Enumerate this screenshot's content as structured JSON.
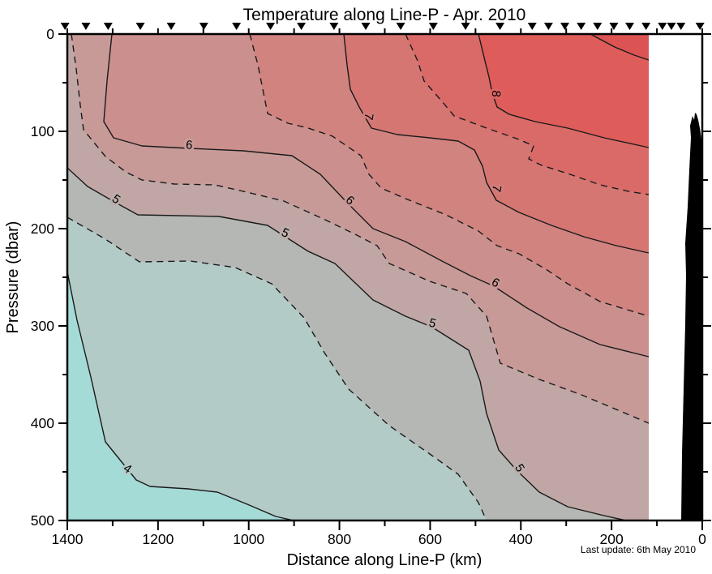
{
  "chart_data": {
    "type": "filled_contour",
    "title": "Temperature along Line-P - Apr. 2010",
    "annotation": "Last update: 6th May 2010",
    "x_axis": {
      "label": "Distance along Line-P (km)",
      "min": 0,
      "max": 1400,
      "reversed": true,
      "ticks_major": [
        1400,
        1200,
        1000,
        800,
        600,
        400,
        200,
        0
      ],
      "ticks_minor": [
        1300,
        1100,
        900,
        700,
        500,
        300,
        100
      ],
      "top_tick_step_km": 100
    },
    "y_axis": {
      "label": "Pressure (dbar)",
      "min": 0,
      "max": 500,
      "inverted": true,
      "ticks_major": [
        0,
        100,
        200,
        300,
        400,
        500
      ],
      "ticks_minor": [
        50,
        150,
        250,
        350,
        450
      ],
      "right_tick_step_dbar": 50
    },
    "contour_levels_solid": [
      4,
      5,
      6,
      7,
      8
    ],
    "contour_levels_dashed": [
      4.5,
      5.5,
      6.5,
      7.5
    ],
    "unlabeled_corner_contour": "solid contour segment in upper-right corner",
    "data_region_ends_km": 118,
    "station_markers_km": [
      1405,
      1359,
      1310,
      1239,
      1171,
      1099,
      1027,
      952,
      884,
      812,
      742,
      665,
      593,
      522,
      446,
      375,
      339,
      303,
      267,
      231,
      195,
      160,
      124,
      88,
      68,
      47,
      5
    ],
    "contour_labels": [
      {
        "value": "4",
        "km": 1272,
        "dbar": 450,
        "rot": 35,
        "halo": "#b3cbc7"
      },
      {
        "value": "5",
        "km": 1297,
        "dbar": 173,
        "rot": 35,
        "halo": "#bcacaa"
      },
      {
        "value": "5",
        "km": 923,
        "dbar": 208,
        "rot": 25,
        "halo": "#bcacaa"
      },
      {
        "value": "5",
        "km": 597,
        "dbar": 301,
        "rot": 15,
        "halo": "#bcacaa"
      },
      {
        "value": "5",
        "km": 410,
        "dbar": 448,
        "rot": 60,
        "halo": "#bcacaa"
      },
      {
        "value": "6",
        "km": 1132,
        "dbar": 118,
        "rot": 5,
        "halo": "#c79a98"
      },
      {
        "value": "6",
        "km": 782,
        "dbar": 174,
        "rot": 40,
        "halo": "#c99593"
      },
      {
        "value": "6",
        "km": 460,
        "dbar": 259,
        "rot": 30,
        "halo": "#c99593"
      },
      {
        "value": "7",
        "km": 744,
        "dbar": 84,
        "rot": 100,
        "halo": "#d27c79"
      },
      {
        "value": "7",
        "km": 462,
        "dbar": 158,
        "rot": 100,
        "halo": "#d27c79"
      },
      {
        "value": "8",
        "km": 463,
        "dbar": 61,
        "rot": 95,
        "halo": "#dc6361"
      }
    ],
    "bands": [
      {
        "range": "< 4",
        "color": "#a5dbd7"
      },
      {
        "range": "4 - 4.5",
        "color": "#b3cbc7"
      },
      {
        "range": "4.5 - 5",
        "color": "#b5b7b4"
      },
      {
        "range": "5 - 5.5",
        "color": "#c0a7a5"
      },
      {
        "range": "5.5 - 6",
        "color": "#c79a98"
      },
      {
        "range": "6 - 6.5",
        "color": "#cb908d"
      },
      {
        "range": "6.5 - 7",
        "color": "#d0837f"
      },
      {
        "range": "7 - 7.5",
        "color": "#d57673"
      },
      {
        "range": "7.5 - 8",
        "color": "#da6a67"
      },
      {
        "range": "> 8",
        "color": "#de5c5a"
      },
      {
        "range": "> 8 nearshore corner",
        "color": "#db5353"
      }
    ],
    "bathymetry_color": "#000000",
    "station_marker_color": "#000000"
  }
}
